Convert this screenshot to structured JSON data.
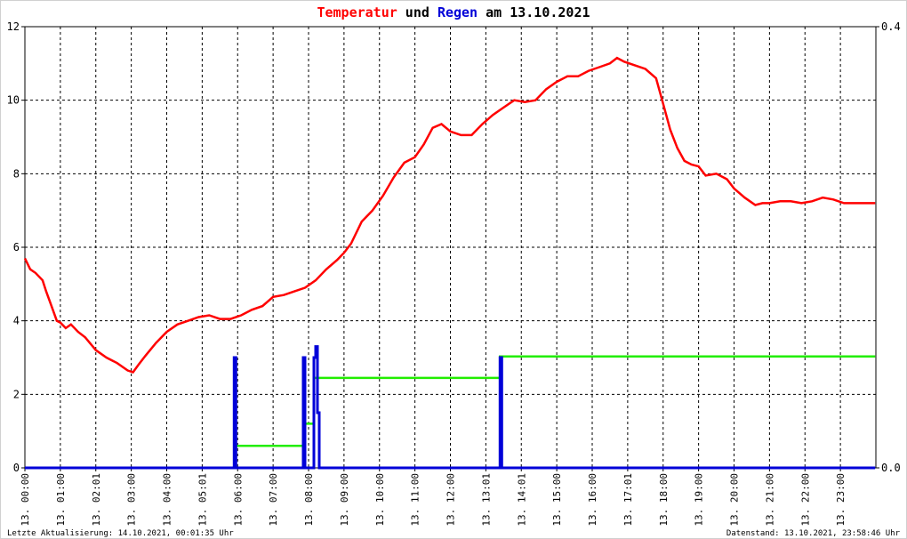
{
  "title": {
    "part1": "Temperatur",
    "part2": " und ",
    "part3": "Regen",
    "part4": " am 13.10.2021"
  },
  "footer": {
    "left": "Letzte Aktualisierung: 14.10.2021, 00:01:35 Uhr",
    "right": "Datenstand: 13.10.2021, 23:58:46 Uhr"
  },
  "colors": {
    "temperature": "#ff0000",
    "rain": "#0000d8",
    "rain_total": "#22ee00",
    "title_mid": "#000000",
    "grid": "#000000"
  },
  "chart_data": {
    "type": "line",
    "x_unit": "hour of day",
    "x_ticks": [
      "13. 00:00",
      "13. 01:00",
      "13. 02:01",
      "13. 03:00",
      "13. 04:00",
      "13. 05:01",
      "13. 06:00",
      "13. 07:00",
      "13. 08:00",
      "13. 09:00",
      "13. 10:00",
      "13. 11:00",
      "13. 12:00",
      "13. 13:01",
      "13. 14:01",
      "13. 15:00",
      "13. 16:00",
      "13. 17:01",
      "13. 18:00",
      "13. 19:00",
      "13. 20:00",
      "13. 21:00",
      "13. 22:00",
      "13. 23:00"
    ],
    "xlim": [
      0,
      24
    ],
    "ylim_left": [
      0,
      12
    ],
    "y_ticks_left": [
      "0",
      "2",
      "4",
      "6",
      "8",
      "10",
      "12"
    ],
    "ylim_right": [
      0,
      0.4
    ],
    "y_ticks_right": [
      "0.0",
      "0.4"
    ],
    "grid": true,
    "series": [
      {
        "name": "Temperatur",
        "axis": "left",
        "x": [
          0,
          0.15,
          0.3,
          0.5,
          0.6,
          0.75,
          0.9,
          1.0,
          1.15,
          1.3,
          1.5,
          1.7,
          2.0,
          2.3,
          2.6,
          2.9,
          3.05,
          3.2,
          3.4,
          3.7,
          4.0,
          4.3,
          4.6,
          4.9,
          5.2,
          5.5,
          5.8,
          6.1,
          6.4,
          6.7,
          7.0,
          7.3,
          7.6,
          7.9,
          8.2,
          8.5,
          8.8,
          9.0,
          9.2,
          9.5,
          9.8,
          10.1,
          10.4,
          10.7,
          11.0,
          11.25,
          11.5,
          11.75,
          12.0,
          12.3,
          12.6,
          12.9,
          13.2,
          13.5,
          13.8,
          14.1,
          14.4,
          14.7,
          15.0,
          15.3,
          15.6,
          15.9,
          16.2,
          16.5,
          16.7,
          16.9,
          17.2,
          17.5,
          17.8,
          18.0,
          18.2,
          18.4,
          18.6,
          18.8,
          19.0,
          19.2,
          19.5,
          19.8,
          20.0,
          20.3,
          20.6,
          20.8,
          21.0,
          21.3,
          21.6,
          21.9,
          22.2,
          22.5,
          22.8,
          23.1,
          23.4,
          23.7,
          23.98
        ],
        "values": [
          5.7,
          5.4,
          5.3,
          5.1,
          4.8,
          4.4,
          4.0,
          3.95,
          3.8,
          3.9,
          3.7,
          3.55,
          3.2,
          3.0,
          2.85,
          2.65,
          2.6,
          2.8,
          3.05,
          3.4,
          3.7,
          3.9,
          4.0,
          4.1,
          4.15,
          4.05,
          4.05,
          4.15,
          4.3,
          4.4,
          4.65,
          4.7,
          4.8,
          4.9,
          5.1,
          5.4,
          5.65,
          5.85,
          6.1,
          6.7,
          7.0,
          7.4,
          7.9,
          8.3,
          8.45,
          8.8,
          9.25,
          9.35,
          9.15,
          9.05,
          9.05,
          9.35,
          9.6,
          9.8,
          10.0,
          9.95,
          10.0,
          10.3,
          10.5,
          10.65,
          10.65,
          10.8,
          10.9,
          11.0,
          11.15,
          11.05,
          10.95,
          10.85,
          10.6,
          9.9,
          9.2,
          8.7,
          8.35,
          8.25,
          8.2,
          7.95,
          8.0,
          7.85,
          7.6,
          7.35,
          7.15,
          7.2,
          7.2,
          7.25,
          7.25,
          7.2,
          7.25,
          7.35,
          7.3,
          7.2,
          7.2,
          7.2,
          7.2
        ]
      },
      {
        "name": "Regen",
        "axis": "right",
        "x": [
          0,
          5.9,
          5.9,
          5.95,
          5.95,
          7.85,
          7.85,
          7.9,
          7.9,
          8.15,
          8.15,
          8.2,
          8.2,
          8.25,
          8.25,
          8.3,
          8.3,
          13.4,
          13.4,
          13.45,
          13.45,
          23.98
        ],
        "values": [
          0,
          0,
          0.1,
          0.1,
          0,
          0,
          0.1,
          0.1,
          0,
          0,
          0.1,
          0.1,
          0.11,
          0.11,
          0.05,
          0.05,
          0,
          0,
          0.1,
          0.1,
          0,
          0
        ]
      },
      {
        "axis": "right",
        "x": [
          0,
          5.9,
          5.9,
          7.85,
          7.85,
          8.15,
          8.15,
          13.4,
          13.4,
          23.98
        ],
        "values": [
          0,
          0,
          0.02,
          0.02,
          0.04,
          0.04,
          0.0815,
          0.0815,
          0.101,
          0.101
        ]
      }
    ]
  }
}
